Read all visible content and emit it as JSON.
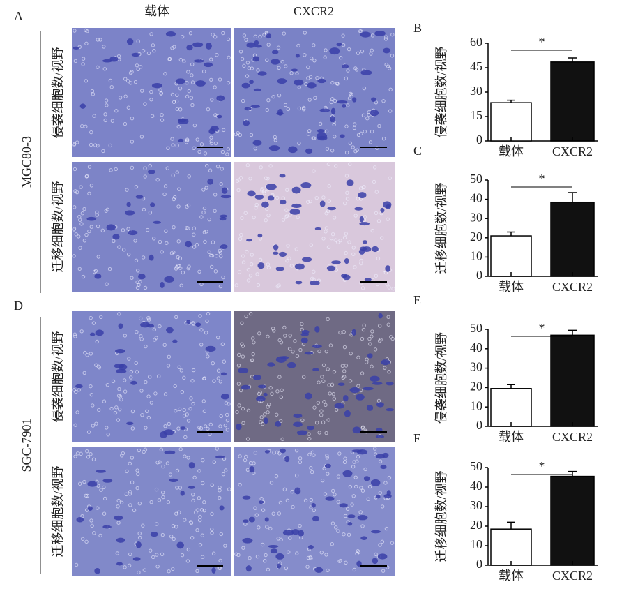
{
  "figure": {
    "panels": [
      "A",
      "D"
    ],
    "columns": [
      "载体",
      "CXCR2"
    ],
    "row_labels": [
      "侵袭细胞数/视野",
      "迁移细胞数/视野",
      "侵袭细胞数/视野",
      "迁移细胞数/视野"
    ],
    "cell_lines": [
      "MGC80-3",
      "SGC-7901"
    ]
  },
  "chart_data": [
    {
      "type": "bar",
      "panel": "B",
      "ylabel": "侵袭细胞数/视野",
      "categories": [
        "载体",
        "CXCR2"
      ],
      "values": [
        23.5,
        48.5
      ],
      "errors": [
        1.5,
        2.5
      ],
      "colors": [
        "#ffffff",
        "#111111"
      ],
      "ylim": [
        0,
        60
      ],
      "yticks": [
        0,
        15,
        30,
        45,
        60
      ],
      "annotation": "*"
    },
    {
      "type": "bar",
      "panel": "C",
      "ylabel": "迁移细胞数/视野",
      "categories": [
        "载体",
        "CXCR2"
      ],
      "values": [
        21,
        38.5
      ],
      "errors": [
        2,
        5
      ],
      "colors": [
        "#ffffff",
        "#111111"
      ],
      "ylim": [
        0,
        50
      ],
      "yticks": [
        0,
        10,
        20,
        30,
        40,
        50
      ],
      "annotation": "*"
    },
    {
      "type": "bar",
      "panel": "E",
      "ylabel": "侵袭细胞数/视野",
      "categories": [
        "载体",
        "CXCR2"
      ],
      "values": [
        19.5,
        47
      ],
      "errors": [
        2,
        2.5
      ],
      "colors": [
        "#ffffff",
        "#111111"
      ],
      "ylim": [
        0,
        50
      ],
      "yticks": [
        0,
        10,
        20,
        30,
        40,
        50
      ],
      "annotation": "*"
    },
    {
      "type": "bar",
      "panel": "F",
      "ylabel": "迁移细胞数/视野",
      "categories": [
        "载体",
        "CXCR2"
      ],
      "values": [
        18.5,
        45.5
      ],
      "errors": [
        3.5,
        2.5
      ],
      "colors": [
        "#ffffff",
        "#111111"
      ],
      "ylim": [
        0,
        50
      ],
      "yticks": [
        0,
        10,
        20,
        30,
        40,
        50
      ],
      "annotation": "*"
    }
  ]
}
